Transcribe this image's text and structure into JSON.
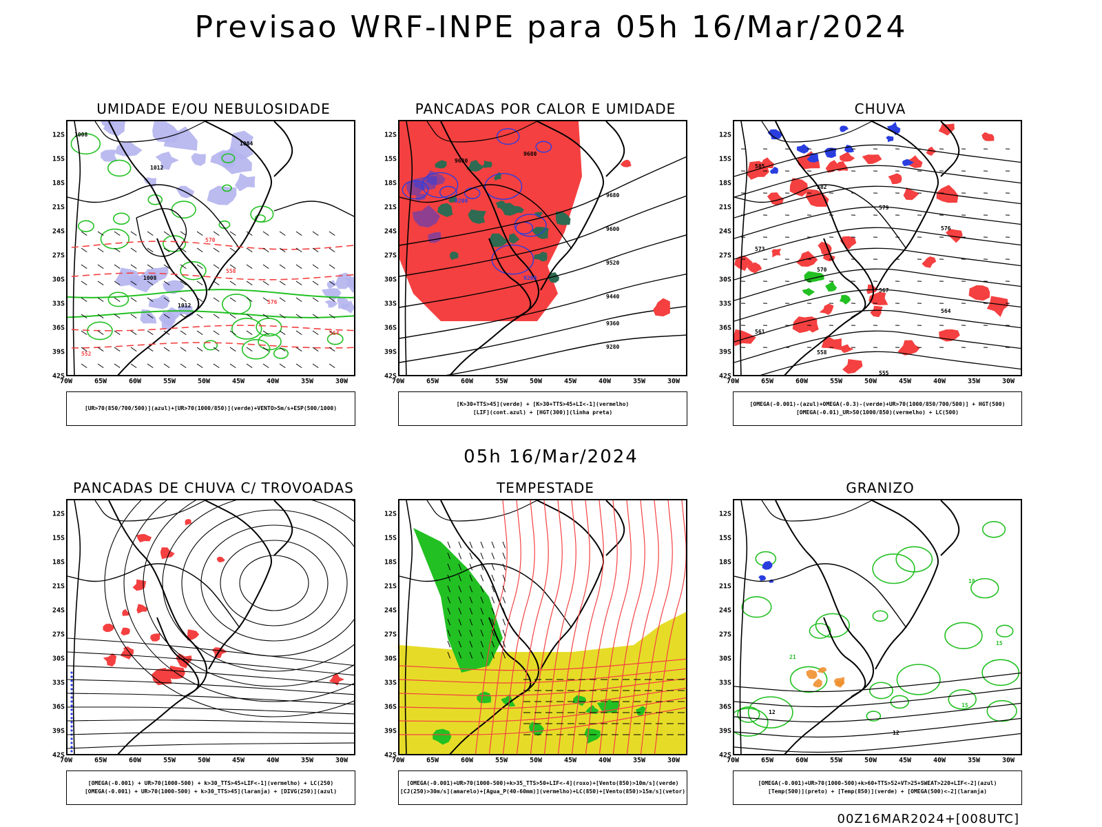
{
  "title": "Previsao WRF-INPE  para 05h 16/Mar/2024",
  "mid_title": "05h 16/Mar/2024",
  "footer": "00Z16MAR2024+[008UTC]",
  "lat_labels": [
    "12S",
    "15S",
    "18S",
    "21S",
    "24S",
    "27S",
    "30S",
    "33S",
    "36S",
    "39S",
    "42S"
  ],
  "lon_labels": [
    "70W",
    "65W",
    "60W",
    "55W",
    "50W",
    "45W",
    "40W",
    "35W",
    "30W"
  ],
  "panels": [
    {
      "title": "UMIDADE E/OU NEBULOSIDADE",
      "legend": [
        "[UR>70(850/700/500)](azul)+[UR>70(1000/850)](verde)+VENTO>5m/s+ESP(500/1000)"
      ]
    },
    {
      "title": "PANCADAS POR CALOR E UMIDADE",
      "legend": [
        "[K>30+TTS>45](verde) + [K>30+TTS>45+LI<-1](vermelho)",
        "[LIF](cont.azul) + [HGT(300)](linha preta)"
      ]
    },
    {
      "title": "CHUVA",
      "legend": [
        "[OMEGA(-0.001)-(azul)+OMEGA(-0.3)-(verde)+UR>70(1000/850/700/500)] + HGT(500)",
        "[OMEGA(-0.01)_UR>50(1000/850)(vermelho) + LC(500)"
      ]
    },
    {
      "title": "PANCADAS DE CHUVA C/ TROVOADAS",
      "legend": [
        "[OMEGA(-0.001) + UR>70(1000-500) + k>30_TTS>45+LIF<-1](vermelho) + LC(250)",
        "[OMEGA(-0.001) + UR>70(1000-500) + k>30_TTS>45](laranja) + [DIVG(250)](azul)"
      ]
    },
    {
      "title": "TEMPESTADE",
      "legend": [
        "[OMEGA(-0.001)+UR>70(1000-500)+k>35_TTS>50+LIF<-4](roxo)+[Vento(850)>10m/s](verde)",
        "[CJ(250)>30m/s](amarelo)+[Agua_P(40-60mm)](vermelho)+LC(850)+[Vento(850)>15m/s](vetor)"
      ]
    },
    {
      "title": "GRANIZO",
      "legend": [
        "[OMEGA(-0.001)+UR>70(1000-500)+k>60+TTS>52+VT>25+SWEAT>220+LIF<-2](azul)",
        "[Temp(500)](preto) + [Temp(850)](verde) + [OMEGA(500)<-2](laranja)"
      ]
    }
  ],
  "contour_labels": {
    "p1": [
      "1008",
      "1012",
      "1004",
      "1008",
      "1012",
      "576",
      "570",
      "564",
      "558",
      "552"
    ],
    "p2": [
      "9680",
      "9600",
      "9520",
      "9440",
      "9360",
      "9280",
      "9200",
      "-3"
    ],
    "p3": [
      "585",
      "582",
      "579",
      "576",
      "573",
      "570",
      "567",
      "564",
      "561",
      "558",
      "555"
    ],
    "p6": [
      "12",
      "15",
      "18",
      "21"
    ]
  },
  "colors": {
    "red": "#f44040",
    "green": "#22c022",
    "blue": "#2a3ee0",
    "lavender": "#b4b4ee",
    "darkgreen": "#2e6b52",
    "yellow": "#e6dc28",
    "orange": "#f09030",
    "black": "#000000"
  }
}
